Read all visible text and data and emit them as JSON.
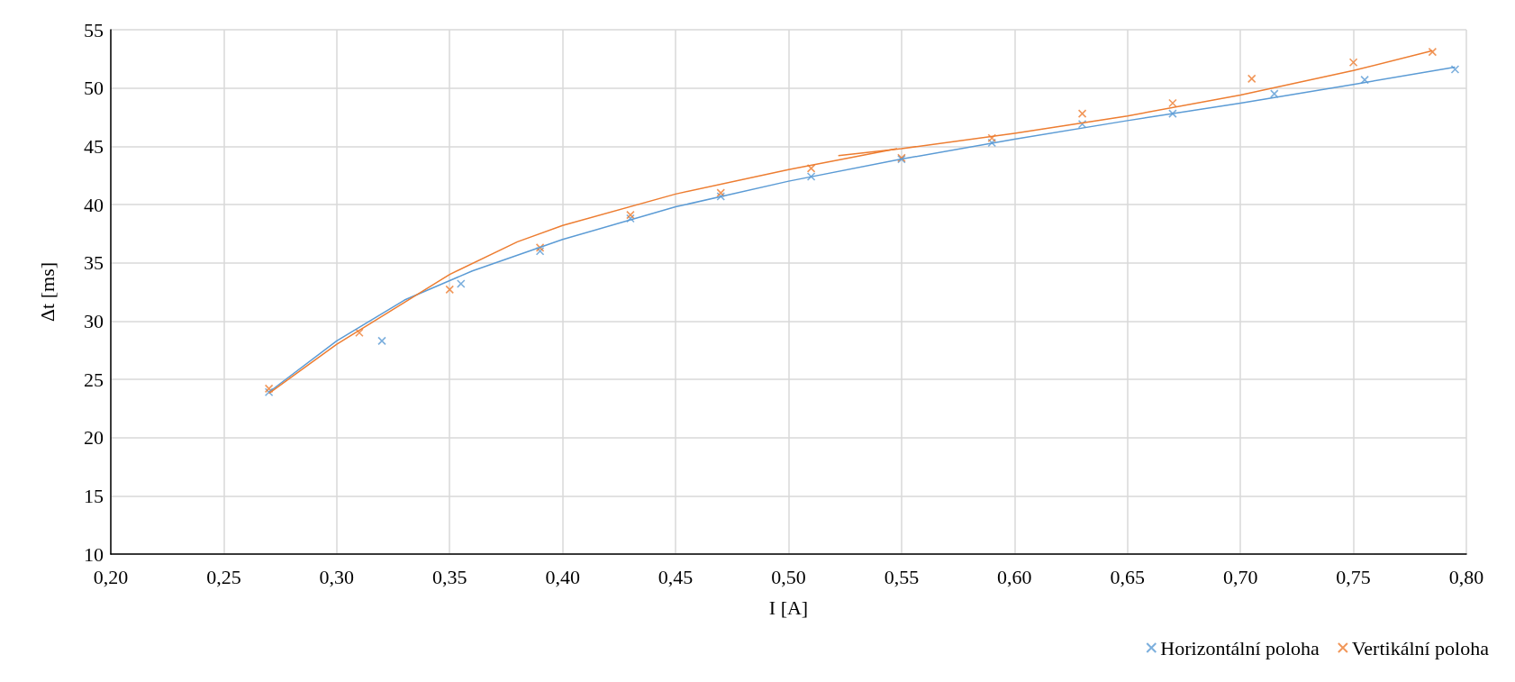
{
  "chart_data": {
    "type": "scatter",
    "xlabel": "I [A]",
    "ylabel": "Δt [ms]",
    "xlim": [
      0.2,
      0.8
    ],
    "xticks": [
      {
        "value": 0.2,
        "label": "0,20"
      },
      {
        "value": 0.25,
        "label": "0,25"
      },
      {
        "value": 0.3,
        "label": "0,30"
      },
      {
        "value": 0.35,
        "label": "0,35"
      },
      {
        "value": 0.4,
        "label": "0,40"
      },
      {
        "value": 0.45,
        "label": "0,45"
      },
      {
        "value": 0.5,
        "label": "0,50"
      },
      {
        "value": 0.55,
        "label": "0,55"
      },
      {
        "value": 0.6,
        "label": "0,60"
      },
      {
        "value": 0.65,
        "label": "0,65"
      },
      {
        "value": 0.7,
        "label": "0,70"
      },
      {
        "value": 0.75,
        "label": "0,75"
      },
      {
        "value": 0.8,
        "label": "0,80"
      }
    ],
    "ylim": [
      10,
      55
    ],
    "yticks": [
      10,
      15,
      20,
      25,
      30,
      35,
      40,
      45,
      50,
      55
    ],
    "grid": true,
    "legend": "bottom right",
    "series": [
      {
        "name": "Horizontální poloha",
        "marker": "cross",
        "color": "#5b9bd5",
        "x": [
          0.27,
          0.32,
          0.355,
          0.39,
          0.43,
          0.47,
          0.51,
          0.55,
          0.59,
          0.63,
          0.67,
          0.715,
          0.755,
          0.795
        ],
        "values": [
          23.9,
          28.3,
          33.2,
          36.0,
          38.8,
          40.7,
          42.4,
          43.9,
          45.3,
          46.9,
          47.8,
          49.5,
          50.7,
          51.6
        ]
      },
      {
        "name": "Vertikální poloha",
        "marker": "cross",
        "color": "#ed7d31",
        "x": [
          0.27,
          0.31,
          0.35,
          0.39,
          0.43,
          0.47,
          0.51,
          0.55,
          0.59,
          0.63,
          0.67,
          0.705,
          0.75,
          0.785
        ],
        "values": [
          24.2,
          29.0,
          32.7,
          36.3,
          39.1,
          41.0,
          43.1,
          44.0,
          45.7,
          47.8,
          48.7,
          50.8,
          52.2,
          53.1
        ]
      },
      {
        "type": "line",
        "marker": "none",
        "color": "#5b9bd5",
        "x": [
          0.27,
          0.3,
          0.33,
          0.36,
          0.4,
          0.45,
          0.5,
          0.55,
          0.6,
          0.65,
          0.7,
          0.75,
          0.795
        ],
        "values": [
          23.9,
          28.3,
          31.8,
          34.3,
          37.0,
          39.8,
          42.0,
          43.9,
          45.6,
          47.2,
          48.7,
          50.3,
          51.8
        ]
      },
      {
        "type": "line",
        "marker": "none",
        "color": "#ed7d31",
        "x": [
          0.27,
          0.3,
          0.33,
          0.35,
          0.38,
          0.4,
          0.45,
          0.5,
          0.548
        ],
        "values": [
          23.8,
          28.0,
          31.6,
          34.0,
          36.8,
          38.2,
          40.9,
          43.0,
          44.8
        ]
      },
      {
        "type": "line",
        "marker": "none",
        "color": "#ed7d31",
        "x": [
          0.522,
          0.55,
          0.6,
          0.65,
          0.7,
          0.75,
          0.785
        ],
        "values": [
          44.2,
          44.8,
          46.1,
          47.6,
          49.4,
          51.5,
          53.2
        ]
      }
    ]
  }
}
